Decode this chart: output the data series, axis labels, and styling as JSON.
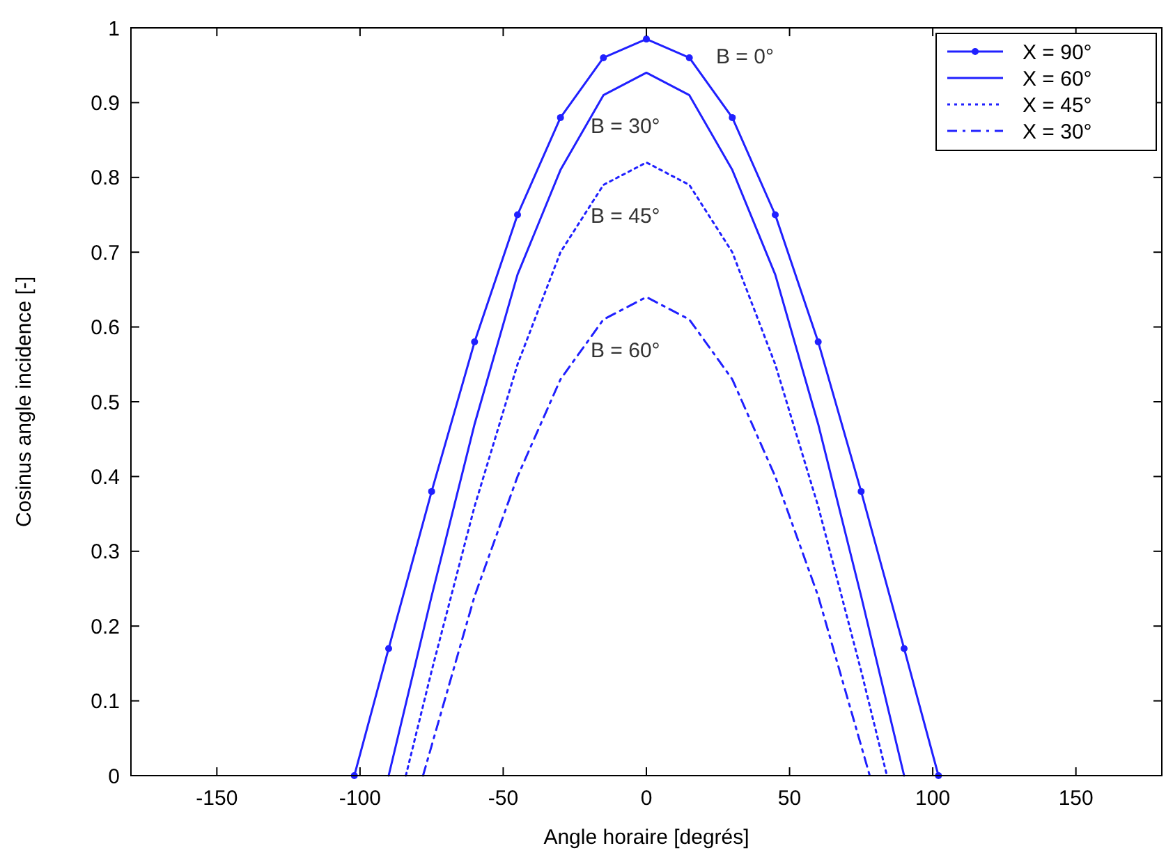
{
  "chart_data": {
    "type": "line",
    "xlabel": "Angle horaire [degrés]",
    "ylabel": "Cosinus angle incidence [-]",
    "xlim": [
      -180,
      180
    ],
    "xticks": [
      -150,
      -100,
      -50,
      0,
      50,
      100,
      150
    ],
    "ylim": [
      0,
      1
    ],
    "yticks": [
      0,
      0.1,
      0.2,
      0.3,
      0.4,
      0.5,
      0.6,
      0.7,
      0.8,
      0.9,
      1
    ],
    "grid": false,
    "legend": "top right",
    "series": [
      {
        "name": "X = 90°",
        "color": "#2020ff",
        "marker": "circle",
        "line_style": "solid",
        "x": [
          -102,
          -90,
          -75,
          -60,
          -45,
          -30,
          -15,
          0,
          15,
          30,
          45,
          60,
          75,
          90,
          102
        ],
        "values": [
          0,
          0.17,
          0.38,
          0.58,
          0.75,
          0.88,
          0.96,
          0.985,
          0.96,
          0.88,
          0.75,
          0.58,
          0.38,
          0.17,
          0
        ]
      },
      {
        "name": "X = 60°",
        "color": "#2020ff",
        "marker": "none",
        "line_style": "solid",
        "x": [
          -90,
          -75,
          -60,
          -45,
          -30,
          -15,
          0,
          15,
          30,
          45,
          60,
          75,
          90
        ],
        "values": [
          0,
          0.24,
          0.47,
          0.67,
          0.81,
          0.91,
          0.94,
          0.91,
          0.81,
          0.67,
          0.47,
          0.24,
          0
        ]
      },
      {
        "name": "X = 45°",
        "color": "#2020ff",
        "marker": "none",
        "line_style": "dotted",
        "x": [
          -84,
          -75,
          -60,
          -45,
          -30,
          -15,
          0,
          15,
          30,
          45,
          60,
          75,
          84
        ],
        "values": [
          0,
          0.14,
          0.36,
          0.55,
          0.7,
          0.79,
          0.82,
          0.79,
          0.7,
          0.55,
          0.36,
          0.14,
          0
        ]
      },
      {
        "name": "X = 30°",
        "color": "#2020ff",
        "marker": "none",
        "line_style": "dashed",
        "x": [
          -78,
          -75,
          -60,
          -45,
          -30,
          -15,
          0,
          15,
          30,
          45,
          60,
          75,
          78
        ],
        "values": [
          0,
          0.04,
          0.24,
          0.4,
          0.53,
          0.61,
          0.64,
          0.61,
          0.53,
          0.4,
          0.24,
          0.04,
          0
        ]
      }
    ],
    "annotations": [
      "B = 0°",
      "B = 30°",
      "B = 45°",
      "B = 60°"
    ]
  }
}
